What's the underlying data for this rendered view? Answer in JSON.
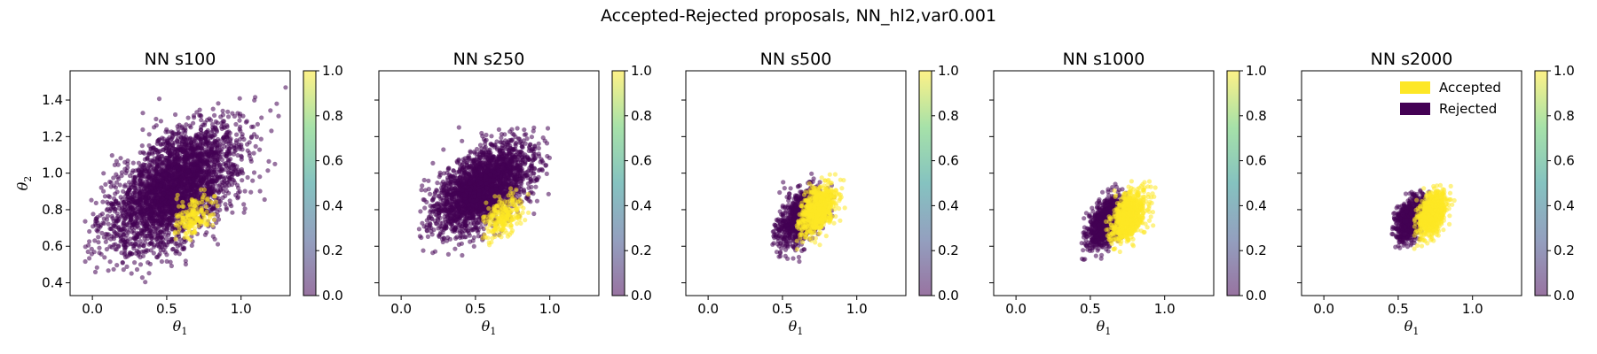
{
  "figure_title": "Accepted-Rejected proposals, NN_hl2,var0.001",
  "colors": {
    "accepted": "#fde725",
    "rejected": "#440154",
    "colormap": "viridis"
  },
  "chart_data": [
    {
      "type": "scatter",
      "title": "NN s100",
      "xlabel": "θ1",
      "ylabel": "θ2",
      "xlim": [
        -0.15,
        1.33
      ],
      "ylim": [
        0.33,
        1.56
      ],
      "xticks": [
        "0.0",
        "0.5",
        "1.0"
      ],
      "yticks": [
        "0.4",
        "0.6",
        "0.8",
        "1.0",
        "1.2",
        "1.4"
      ],
      "colorbar_ticks": [
        "0.0",
        "0.2",
        "0.4",
        "0.6",
        "0.8",
        "1.0"
      ],
      "series": [
        {
          "name": "Rejected",
          "value": 0,
          "count": 3200,
          "center": [
            0.55,
            0.92
          ],
          "sd": [
            0.22,
            0.17
          ],
          "corr": 0.55,
          "range": {
            "x": [
              -0.05,
              1.3
            ],
            "y": [
              0.38,
              1.52
            ]
          }
        },
        {
          "name": "Accepted",
          "value": 1,
          "count": 170,
          "center": [
            0.68,
            0.76
          ],
          "sd": [
            0.07,
            0.06
          ],
          "corr": 0.4,
          "range": {
            "x": [
              0.55,
              0.85
            ],
            "y": [
              0.62,
              0.92
            ]
          }
        }
      ]
    },
    {
      "type": "scatter",
      "title": "NN s250",
      "xlabel": "θ1",
      "ylabel": "",
      "xlim": [
        -0.15,
        1.33
      ],
      "ylim": [
        0.33,
        1.56
      ],
      "xticks": [
        "0.0",
        "0.5",
        "1.0"
      ],
      "yticks": [
        "",
        "",
        "",
        "",
        "",
        ""
      ],
      "colorbar_ticks": [
        "0.0",
        "0.2",
        "0.4",
        "0.6",
        "0.8",
        "1.0"
      ],
      "series": [
        {
          "name": "Rejected",
          "value": 0,
          "count": 2600,
          "center": [
            0.55,
            0.92
          ],
          "sd": [
            0.16,
            0.12
          ],
          "corr": 0.55,
          "range": {
            "x": [
              0.12,
              1.05
            ],
            "y": [
              0.55,
              1.26
            ]
          }
        },
        {
          "name": "Accepted",
          "value": 1,
          "count": 220,
          "center": [
            0.68,
            0.76
          ],
          "sd": [
            0.07,
            0.06
          ],
          "corr": 0.45,
          "range": {
            "x": [
              0.55,
              0.88
            ],
            "y": [
              0.6,
              0.95
            ]
          }
        }
      ]
    },
    {
      "type": "scatter",
      "title": "NN s500",
      "xlabel": "θ1",
      "ylabel": "",
      "xlim": [
        -0.15,
        1.33
      ],
      "ylim": [
        0.33,
        1.56
      ],
      "xticks": [
        "0.0",
        "0.5",
        "1.0"
      ],
      "yticks": [
        "",
        "",
        "",
        "",
        "",
        ""
      ],
      "colorbar_ticks": [
        "0.0",
        "0.2",
        "0.4",
        "0.6",
        "0.8",
        "1.0"
      ],
      "series": [
        {
          "name": "Rejected",
          "value": 0,
          "count": 900,
          "center": [
            0.62,
            0.76
          ],
          "sd": [
            0.08,
            0.08
          ],
          "corr": 0.5,
          "range": {
            "x": [
              0.43,
              0.92
            ],
            "y": [
              0.5,
              1.0
            ]
          }
        },
        {
          "name": "Accepted",
          "value": 1,
          "count": 700,
          "center": [
            0.74,
            0.8
          ],
          "sd": [
            0.06,
            0.07
          ],
          "corr": 0.45,
          "range": {
            "x": [
              0.58,
              0.92
            ],
            "y": [
              0.52,
              1.0
            ]
          }
        }
      ]
    },
    {
      "type": "scatter",
      "title": "NN s1000",
      "xlabel": "θ1",
      "ylabel": "",
      "xlim": [
        -0.15,
        1.33
      ],
      "ylim": [
        0.33,
        1.56
      ],
      "xticks": [
        "0.0",
        "0.5",
        "1.0"
      ],
      "yticks": [
        "",
        "",
        "",
        "",
        "",
        ""
      ],
      "colorbar_ticks": [
        "0.0",
        "0.2",
        "0.4",
        "0.6",
        "0.8",
        "1.0"
      ],
      "series": [
        {
          "name": "Rejected",
          "value": 0,
          "count": 900,
          "center": [
            0.6,
            0.73
          ],
          "sd": [
            0.06,
            0.07
          ],
          "corr": 0.5,
          "range": {
            "x": [
              0.44,
              0.85
            ],
            "y": [
              0.52,
              0.98
            ]
          }
        },
        {
          "name": "Accepted",
          "value": 1,
          "count": 800,
          "center": [
            0.76,
            0.76
          ],
          "sd": [
            0.06,
            0.07
          ],
          "corr": 0.5,
          "range": {
            "x": [
              0.6,
              0.98
            ],
            "y": [
              0.54,
              0.97
            ]
          }
        }
      ]
    },
    {
      "type": "scatter",
      "title": "NN s2000",
      "xlabel": "θ1",
      "ylabel": "",
      "xlim": [
        -0.15,
        1.33
      ],
      "ylim": [
        0.33,
        1.56
      ],
      "xticks": [
        "0.0",
        "0.5",
        "1.0"
      ],
      "yticks": [
        "",
        "",
        "",
        "",
        "",
        ""
      ],
      "colorbar_ticks": [
        "0.0",
        "0.2",
        "0.4",
        "0.6",
        "0.8",
        "1.0"
      ],
      "legend": {
        "placement": "top-right",
        "entries": [
          "Accepted",
          "Rejected"
        ]
      },
      "series": [
        {
          "name": "Rejected",
          "value": 0,
          "count": 800,
          "center": [
            0.58,
            0.75
          ],
          "sd": [
            0.05,
            0.06
          ],
          "corr": 0.4,
          "range": {
            "x": [
              0.45,
              0.75
            ],
            "y": [
              0.58,
              0.92
            ]
          }
        },
        {
          "name": "Accepted",
          "value": 1,
          "count": 700,
          "center": [
            0.73,
            0.78
          ],
          "sd": [
            0.05,
            0.06
          ],
          "corr": 0.45,
          "range": {
            "x": [
              0.6,
              0.88
            ],
            "y": [
              0.58,
              0.95
            ]
          }
        }
      ]
    }
  ]
}
